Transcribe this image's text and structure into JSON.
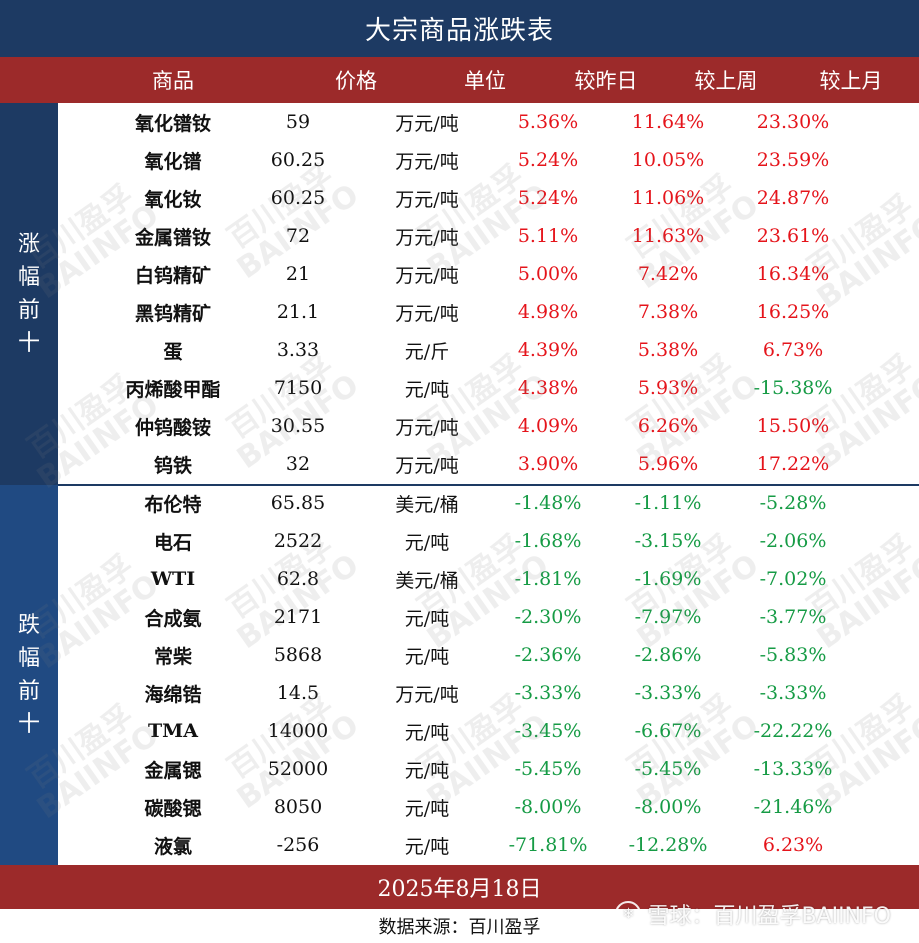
{
  "title": "大宗商品涨跌表",
  "header": {
    "name": "商品",
    "price": "价格",
    "unit": "单位",
    "vs_yesterday": "较昨日",
    "vs_last_week": "较上周",
    "vs_last_month": "较上月"
  },
  "groups": {
    "rise": "涨幅前十",
    "fall": "跌幅前十"
  },
  "rows": [
    {
      "name": "氧化镨钕",
      "price": "59",
      "unit": "万元/吨",
      "d1": "5.36%",
      "d2": "11.64%",
      "d3": "23.30%"
    },
    {
      "name": "氧化镨",
      "price": "60.25",
      "unit": "万元/吨",
      "d1": "5.24%",
      "d2": "10.05%",
      "d3": "23.59%"
    },
    {
      "name": "氧化钕",
      "price": "60.25",
      "unit": "万元/吨",
      "d1": "5.24%",
      "d2": "11.06%",
      "d3": "24.87%"
    },
    {
      "name": "金属镨钕",
      "price": "72",
      "unit": "万元/吨",
      "d1": "5.11%",
      "d2": "11.63%",
      "d3": "23.61%"
    },
    {
      "name": "白钨精矿",
      "price": "21",
      "unit": "万元/吨",
      "d1": "5.00%",
      "d2": "7.42%",
      "d3": "16.34%"
    },
    {
      "name": "黑钨精矿",
      "price": "21.1",
      "unit": "万元/吨",
      "d1": "4.98%",
      "d2": "7.38%",
      "d3": "16.25%"
    },
    {
      "name": "蛋",
      "price": "3.33",
      "unit": "元/斤",
      "d1": "4.39%",
      "d2": "5.38%",
      "d3": "6.73%"
    },
    {
      "name": "丙烯酸甲酯",
      "price": "7150",
      "unit": "元/吨",
      "d1": "4.38%",
      "d2": "5.93%",
      "d3": "-15.38%"
    },
    {
      "name": "仲钨酸铵",
      "price": "30.55",
      "unit": "万元/吨",
      "d1": "4.09%",
      "d2": "6.26%",
      "d3": "15.50%"
    },
    {
      "name": "钨铁",
      "price": "32",
      "unit": "万元/吨",
      "d1": "3.90%",
      "d2": "5.96%",
      "d3": "17.22%"
    },
    {
      "name": "布伦特",
      "price": "65.85",
      "unit": "美元/桶",
      "d1": "-1.48%",
      "d2": "-1.11%",
      "d3": "-5.28%"
    },
    {
      "name": "电石",
      "price": "2522",
      "unit": "元/吨",
      "d1": "-1.68%",
      "d2": "-3.15%",
      "d3": "-2.06%"
    },
    {
      "name": "WTI",
      "price": "62.8",
      "unit": "美元/桶",
      "d1": "-1.81%",
      "d2": "-1.69%",
      "d3": "-7.02%"
    },
    {
      "name": "合成氨",
      "price": "2171",
      "unit": "元/吨",
      "d1": "-2.30%",
      "d2": "-7.97%",
      "d3": "-3.77%"
    },
    {
      "name": "常柴",
      "price": "5868",
      "unit": "元/吨",
      "d1": "-2.36%",
      "d2": "-2.86%",
      "d3": "-5.83%"
    },
    {
      "name": "海绵锆",
      "price": "14.5",
      "unit": "万元/吨",
      "d1": "-3.33%",
      "d2": "-3.33%",
      "d3": "-3.33%"
    },
    {
      "name": "TMA",
      "price": "14000",
      "unit": "元/吨",
      "d1": "-3.45%",
      "d2": "-6.67%",
      "d3": "-22.22%"
    },
    {
      "name": "金属锶",
      "price": "52000",
      "unit": "元/吨",
      "d1": "-5.45%",
      "d2": "-5.45%",
      "d3": "-13.33%"
    },
    {
      "name": "碳酸锶",
      "price": "8050",
      "unit": "元/吨",
      "d1": "-8.00%",
      "d2": "-8.00%",
      "d3": "-21.46%"
    },
    {
      "name": "液氯",
      "price": "-256",
      "unit": "元/吨",
      "d1": "-71.81%",
      "d2": "-12.28%",
      "d3": "6.23%"
    }
  ],
  "footer": {
    "date": "2025年8月18日",
    "source": "数据来源：百川盈孚"
  },
  "watermark": {
    "cn": "百川盈孚",
    "en": "BAIINFO"
  },
  "brand": {
    "icon": "snowball-icon",
    "text": "雪球：百川盈孚BAIINFO"
  },
  "colors": {
    "navy": "#1d3a63",
    "red_band": "#9c2a2a",
    "positive": "#e5141b",
    "negative": "#169b45"
  }
}
